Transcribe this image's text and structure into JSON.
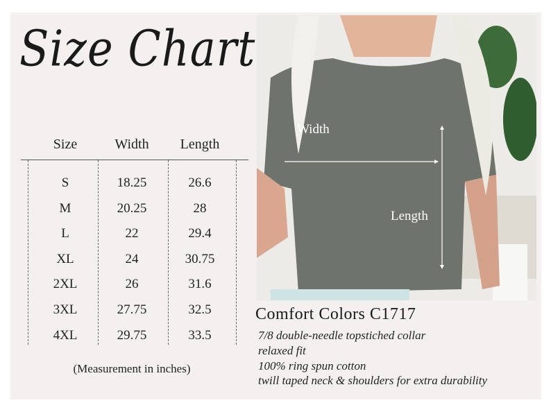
{
  "title": "Size Chart",
  "table": {
    "headers": [
      "Size",
      "Width",
      "Length"
    ],
    "rows": [
      [
        "S",
        "18.25",
        "26.6"
      ],
      [
        "M",
        "20.25",
        "28"
      ],
      [
        "L",
        "22",
        "29.4"
      ],
      [
        "XL",
        "24",
        "30.75"
      ],
      [
        "2XL",
        "26",
        "31.6"
      ],
      [
        "3XL",
        "27.75",
        "32.5"
      ],
      [
        "4XL",
        "29.75",
        "33.5"
      ]
    ]
  },
  "note": "(Measurement in inches)",
  "photo": {
    "width_label": "Width",
    "length_label": "Length",
    "shirt_color": "#6e746b"
  },
  "product": {
    "name": "Comfort Colors C1717",
    "features": [
      "7/8 double-needle topstiched collar",
      "relaxed fit",
      "100% ring spun cotton",
      "twill taped neck & shoulders for extra durability"
    ]
  }
}
